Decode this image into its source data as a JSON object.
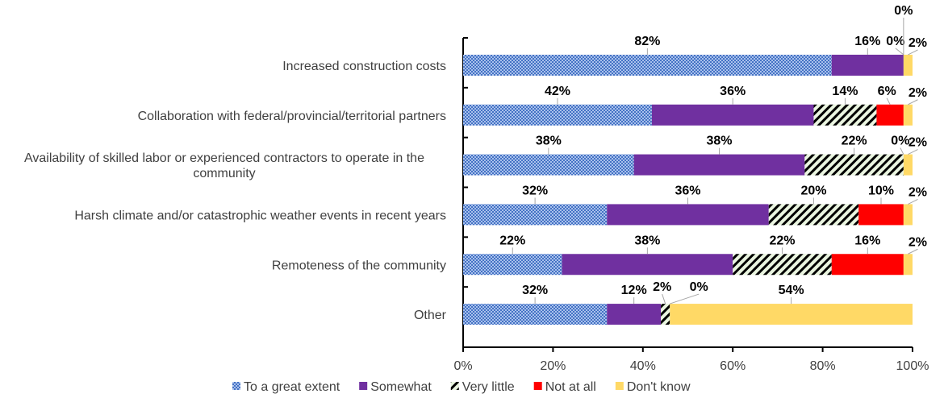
{
  "chart_data": {
    "type": "bar",
    "orientation": "horizontal",
    "stacked": true,
    "title": "",
    "xlabel": "",
    "ylabel": "",
    "xlim": [
      0,
      100
    ],
    "x_ticks": [
      "0%",
      "20%",
      "40%",
      "60%",
      "80%",
      "100%"
    ],
    "grid": false,
    "legend_position": "bottom",
    "categories": [
      [
        "Increased construction costs"
      ],
      [
        "Collaboration with federal/provincial/territorial partners"
      ],
      [
        "Availability of skilled labor or experienced contractors to operate in the",
        "community"
      ],
      [
        "Harsh climate and/or catastrophic weather events in recent years"
      ],
      [
        "Remoteness of the community"
      ],
      [
        "Other"
      ]
    ],
    "series": [
      {
        "name": "To a great extent",
        "pattern": "checker",
        "color": "#4472c4",
        "values": [
          82,
          42,
          38,
          32,
          22,
          32
        ]
      },
      {
        "name": "Somewhat",
        "pattern": "solid",
        "color": "#7030a0",
        "values": [
          16,
          36,
          38,
          36,
          38,
          12
        ]
      },
      {
        "name": "Very little",
        "pattern": "hatch",
        "color": "#000000",
        "values": [
          0,
          14,
          22,
          20,
          22,
          2
        ]
      },
      {
        "name": "Not at all",
        "pattern": "solid",
        "color": "#ff0000",
        "values": [
          0,
          6,
          0,
          10,
          16,
          0
        ]
      },
      {
        "name": "Don't know",
        "pattern": "solid",
        "color": "#ffd966",
        "values": [
          2,
          2,
          2,
          2,
          2,
          54
        ]
      }
    ],
    "data_labels": [
      [
        "82%",
        "16%",
        "0%",
        "0%",
        "2%"
      ],
      [
        "42%",
        "36%",
        "14%",
        "6%",
        "2%"
      ],
      [
        "38%",
        "38%",
        "22%",
        "0%",
        "2%"
      ],
      [
        "32%",
        "36%",
        "20%",
        "10%",
        "2%"
      ],
      [
        "22%",
        "38%",
        "22%",
        "16%",
        "2%"
      ],
      [
        "32%",
        "12%",
        "2%",
        "0%",
        "54%"
      ]
    ]
  }
}
